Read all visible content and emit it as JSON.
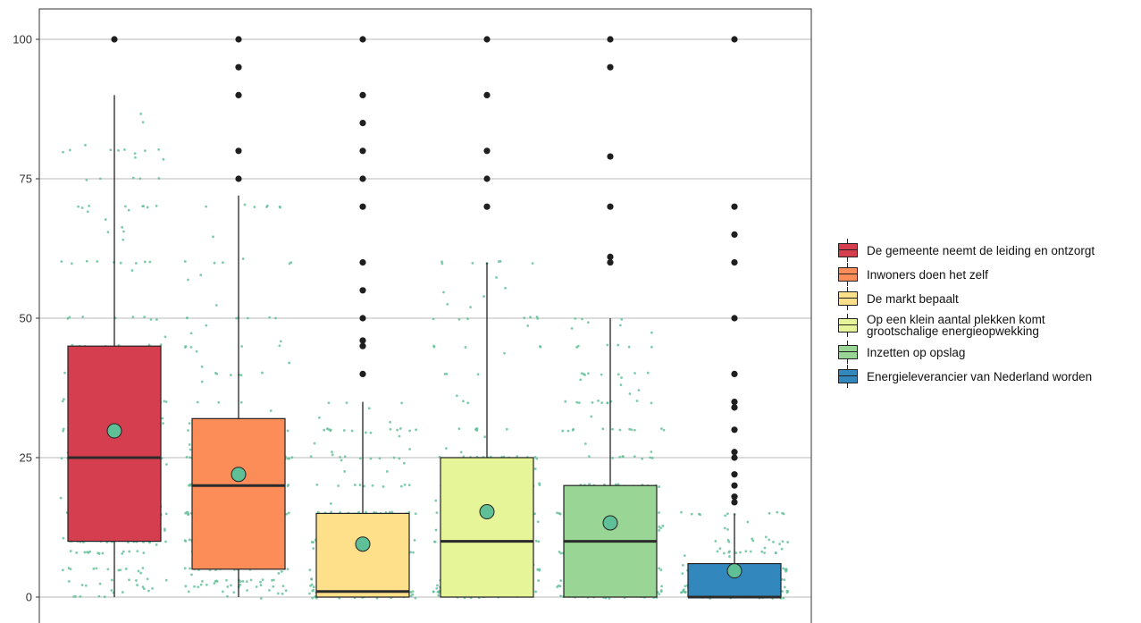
{
  "chart_data": {
    "type": "box",
    "y_ticks": [
      0,
      25,
      50,
      75,
      100
    ],
    "ylim": [
      -2,
      105
    ],
    "grid": true,
    "legend_position": "right",
    "colors": {
      "median": "#2b2b2b",
      "mean_marker": "#5fbf96",
      "jitter": "#5fbf96",
      "outlier": "#1f1f1f"
    },
    "series": [
      {
        "name": "De gemeente neemt de leiding en ontzorgt",
        "color": "#d53e4f",
        "q1": 10,
        "median": 25,
        "q3": 45,
        "whisker_low": 0,
        "whisker_high": 90,
        "mean": 29.8,
        "outliers": [
          100
        ]
      },
      {
        "name": "Inwoners doen het zelf",
        "color": "#fc8d59",
        "q1": 5,
        "median": 20,
        "q3": 32,
        "whisker_low": 0,
        "whisker_high": 72,
        "mean": 22,
        "outliers": [
          75,
          80,
          90,
          95,
          100
        ]
      },
      {
        "name": "De markt bepaalt",
        "color": "#fee08b",
        "q1": 0,
        "median": 1,
        "q3": 15,
        "whisker_low": 0,
        "whisker_high": 35,
        "mean": 9.5,
        "outliers": [
          40,
          45,
          46,
          50,
          55,
          60,
          70,
          75,
          80,
          85,
          90,
          100
        ]
      },
      {
        "name": "Op een klein aantal plekken komt grootschalige energieopwekking",
        "color": "#e6f598",
        "q1": 0,
        "median": 10,
        "q3": 25,
        "whisker_low": 0,
        "whisker_high": 60,
        "mean": 15.3,
        "outliers": [
          70,
          75,
          80,
          90,
          100
        ]
      },
      {
        "name": "Inzetten op opslag",
        "color": "#99d594",
        "q1": 0,
        "median": 10,
        "q3": 20,
        "whisker_low": 0,
        "whisker_high": 50,
        "mean": 13.3,
        "outliers": [
          60,
          61,
          70,
          79,
          95,
          100
        ]
      },
      {
        "name": "Energieleverancier van Nederland worden",
        "color": "#3288bd",
        "q1": 0,
        "median": 0,
        "q3": 6,
        "whisker_low": 0,
        "whisker_high": 15,
        "mean": 4.7,
        "outliers": [
          17,
          18,
          20,
          22,
          25,
          26,
          30,
          34,
          35,
          40,
          50,
          60,
          65,
          70,
          100
        ]
      }
    ]
  },
  "legend": {
    "items": [
      {
        "label": "De gemeente neemt de leiding en ontzorgt",
        "color": "#d53e4f"
      },
      {
        "label": "Inwoners doen het zelf",
        "color": "#fc8d59"
      },
      {
        "label": "De markt bepaalt",
        "color": "#fee08b"
      },
      {
        "label": "Op een klein aantal plekken komt grootschalige energieopwekking",
        "color": "#e6f598"
      },
      {
        "label": "Inzetten op opslag",
        "color": "#99d594"
      },
      {
        "label": "Energieleverancier van Nederland worden",
        "color": "#3288bd"
      }
    ]
  }
}
